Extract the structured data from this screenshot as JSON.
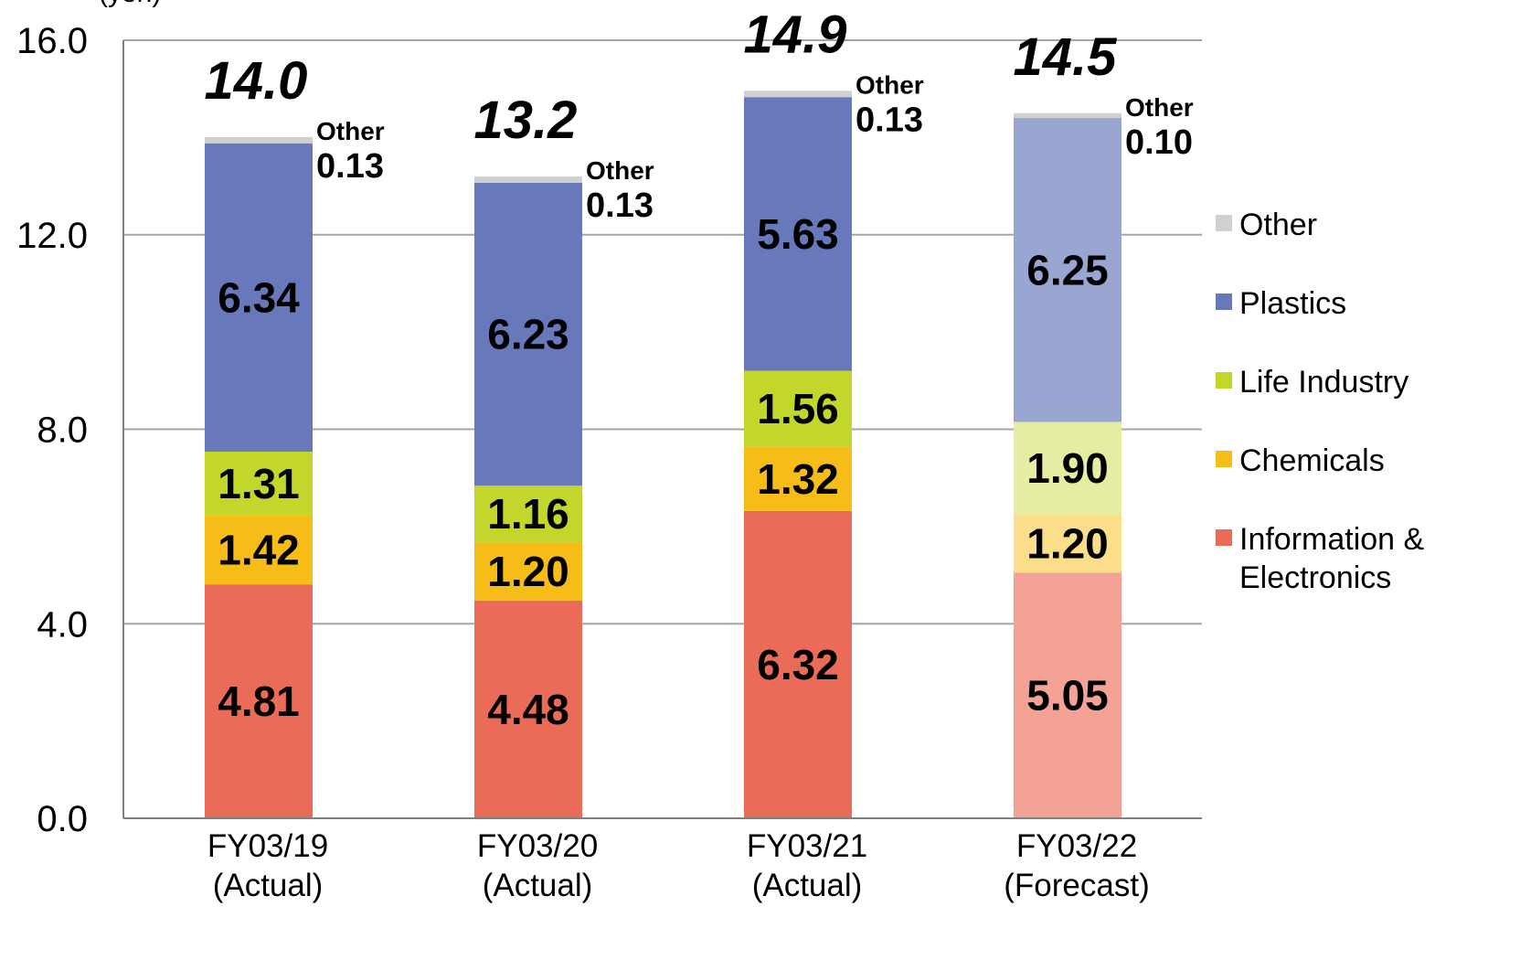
{
  "chart_data": {
    "type": "bar",
    "stacked": true,
    "unit_label": "(yen)",
    "categories": [
      [
        "FY03/19",
        "(Actual)"
      ],
      [
        "FY03/20",
        "(Actual)"
      ],
      [
        "FY03/21",
        "(Actual)"
      ],
      [
        "FY03/22",
        "(Forecast)"
      ]
    ],
    "series": [
      {
        "name": "Information & Electronics",
        "legend_lines": [
          "Information &",
          "Electronics"
        ],
        "color": "#ea6b57",
        "forecast_color": "#f4a295",
        "values": [
          4.81,
          4.48,
          6.32,
          5.05
        ],
        "labels": [
          "4.81",
          "4.48",
          "6.32",
          "5.05"
        ]
      },
      {
        "name": "Chemicals",
        "legend_lines": [
          "Chemicals"
        ],
        "color": "#f6bc17",
        "forecast_color": "#fbde8a",
        "values": [
          1.42,
          1.2,
          1.32,
          1.2
        ],
        "labels": [
          "1.42",
          "1.20",
          "1.32",
          "1.20"
        ]
      },
      {
        "name": "Life Industry",
        "legend_lines": [
          "Life Industry"
        ],
        "color": "#c2d62c",
        "forecast_color": "#e4eda1",
        "values": [
          1.31,
          1.16,
          1.56,
          1.9
        ],
        "labels": [
          "1.31",
          "1.16",
          "1.56",
          "1.90"
        ]
      },
      {
        "name": "Plastics",
        "legend_lines": [
          "Plastics"
        ],
        "color": "#6879bb",
        "forecast_color": "#9aa6d2",
        "values": [
          6.34,
          6.23,
          5.63,
          6.25
        ],
        "labels": [
          "6.34",
          "6.23",
          "5.63",
          "6.25"
        ]
      },
      {
        "name": "Other",
        "legend_lines": [
          "Other"
        ],
        "color": "#d0d0d0",
        "forecast_color": "#d0d0d0",
        "values": [
          0.13,
          0.13,
          0.13,
          0.1
        ],
        "labels": [
          "0.13",
          "0.13",
          "0.13",
          "0.10"
        ],
        "caption": "Other"
      }
    ],
    "forecast_index": 3,
    "totals": [
      "14.0",
      "13.2",
      "14.9",
      "14.5"
    ],
    "ylim": [
      0,
      16
    ],
    "yticks": [
      0,
      4,
      8,
      12,
      16
    ],
    "ytick_labels": [
      "0.0",
      "4.0",
      "8.0",
      "12.0",
      "16.0"
    ],
    "grid": true,
    "legend_position": "right",
    "legend_order": [
      4,
      3,
      2,
      1,
      0
    ]
  }
}
